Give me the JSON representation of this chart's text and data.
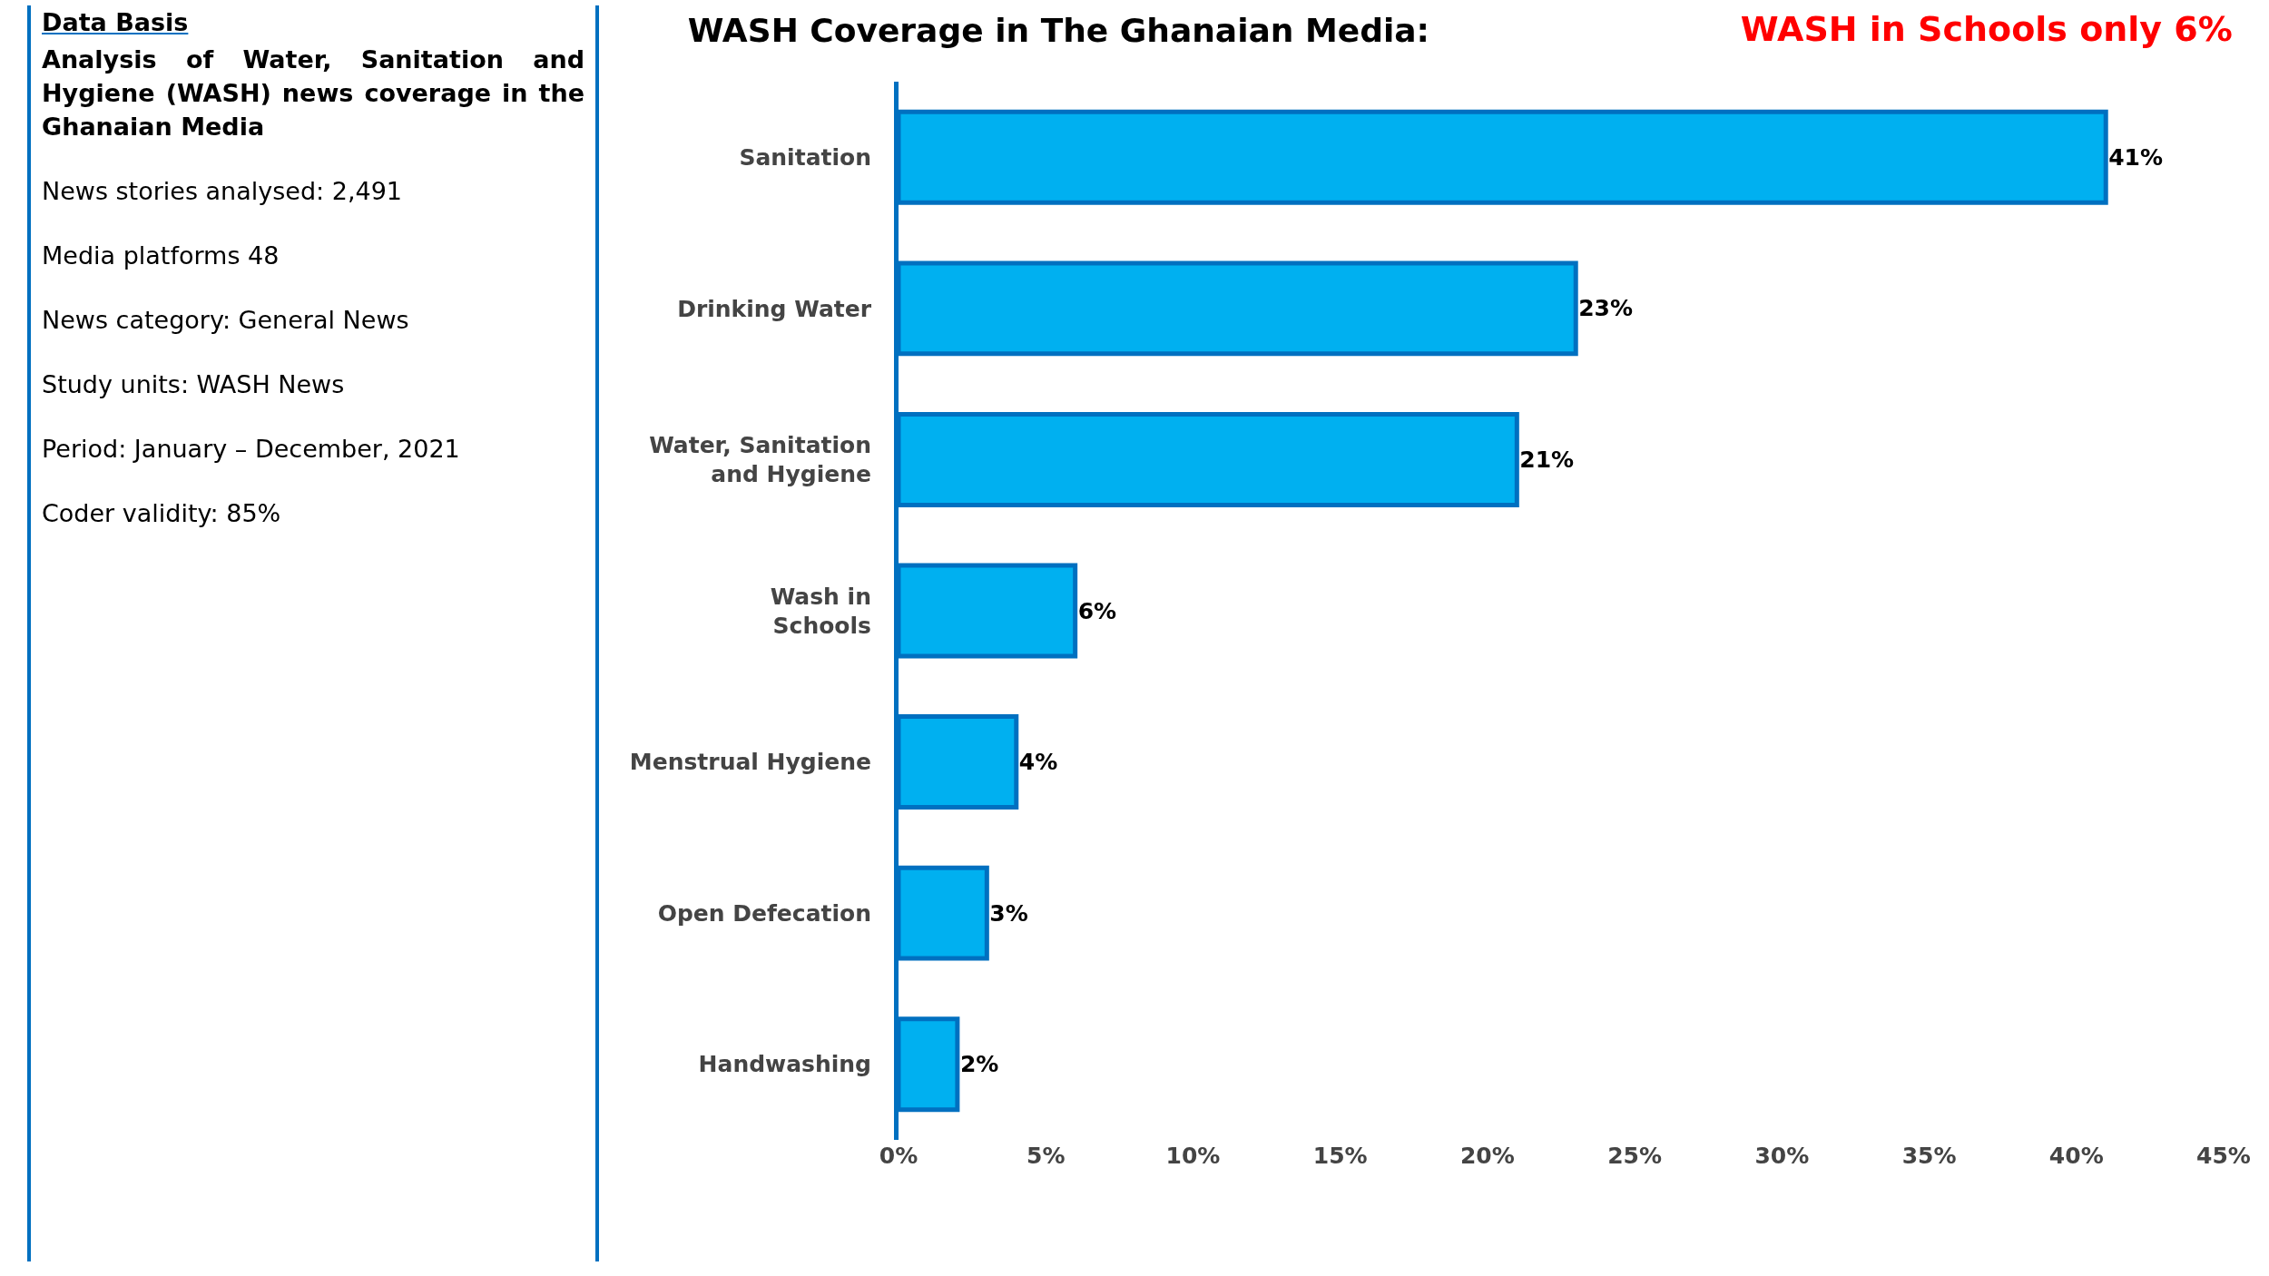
{
  "chart_data": {
    "type": "bar",
    "orientation": "horizontal",
    "title": "WASH Coverage in The Ghanaian Media:",
    "subtitle": "WASH in Schools only 6%",
    "categories": [
      "Sanitation",
      "Drinking Water",
      "Water, Sanitation and Hygiene",
      "Wash in Schools",
      "Menstrual Hygiene",
      "Open Defecation",
      "Handwashing"
    ],
    "values": [
      41,
      23,
      21,
      6,
      4,
      3,
      2
    ],
    "value_labels": [
      "41%",
      "23%",
      "21%",
      "6%",
      "4%",
      "3%",
      "2%"
    ],
    "color": "#00b0f0",
    "xlim": [
      0,
      45
    ],
    "xticks": [
      {
        "value": 0,
        "label": "0%"
      },
      {
        "value": 5,
        "label": "5%"
      },
      {
        "value": 10,
        "label": "10%"
      },
      {
        "value": 15,
        "label": "15%"
      },
      {
        "value": 20,
        "label": "20%"
      },
      {
        "value": 25,
        "label": "25%"
      },
      {
        "value": 30,
        "label": "30%"
      },
      {
        "value": 35,
        "label": "35%"
      },
      {
        "value": 40,
        "label": "40%"
      },
      {
        "value": 45,
        "label": "45%"
      }
    ],
    "grid": false,
    "annotations": [
      "Data Basis",
      "Analysis of Water, Sanitation and Hygiene (WASH) news coverage in the Ghanaian Media",
      "News stories analysed: 2,491",
      "Media platforms 48",
      "News category: General News",
      "Study units: WASH News",
      "Period: January – December, 2021",
      "Coder validity: 85%"
    ]
  }
}
